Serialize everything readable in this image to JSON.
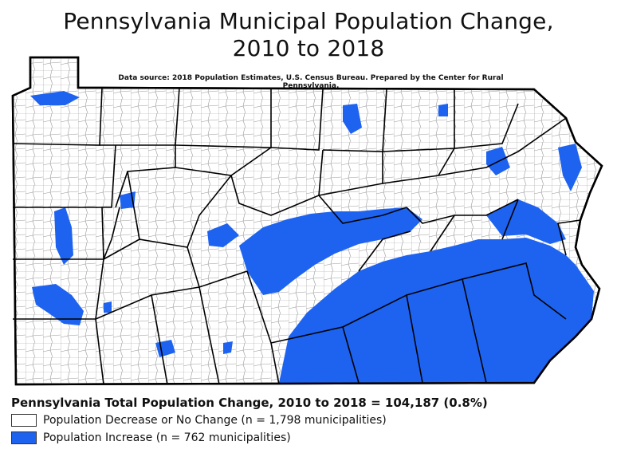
{
  "title_line1": "Pennsylvania Municipal Population Change,",
  "title_line2": "2010 to 2018",
  "source": "Data source: 2018 Population Estimates, U.S. Census Bureau. Prepared by the Center for Rural Pennsylvania.",
  "total_change": "Pennsylvania Total Population Change, 2010 to 2018 = 104,187 (0.8%)",
  "legend": [
    {
      "label": "Population Decrease or No Change (n = 1,798 municipalities)",
      "color": "#ffffff"
    },
    {
      "label": "Population Increase (n = 762 municipalities)",
      "color": "#1e63f0"
    }
  ],
  "colors": {
    "increase": "#1e63f0",
    "decrease": "#ffffff",
    "border": "#000000"
  }
}
